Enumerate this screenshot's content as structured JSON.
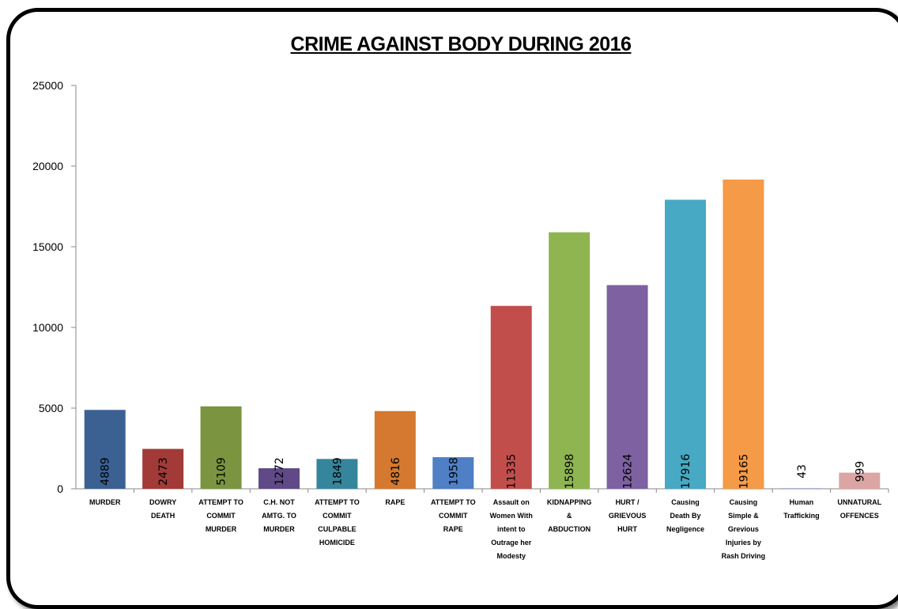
{
  "chart_data": {
    "type": "bar",
    "title": "CRIME AGAINST BODY  DURING  2016",
    "xlabel": "",
    "ylabel": "",
    "ylim": [
      0,
      25000
    ],
    "yticks": [
      "0",
      "5000",
      "10000",
      "15000",
      "20000",
      "25000"
    ],
    "grid": false,
    "legend": "none",
    "categories": [
      [
        "MURDER"
      ],
      [
        "DOWRY",
        "DEATH"
      ],
      [
        "ATTEMPT TO",
        "COMMIT",
        "MURDER"
      ],
      [
        "C.H. NOT",
        "AMTG. TO",
        "MURDER"
      ],
      [
        "ATTEMPT TO",
        "COMMIT",
        "CULPABLE",
        "HOMICIDE"
      ],
      [
        "RAPE"
      ],
      [
        "ATTEMPT TO",
        "COMMIT",
        "RAPE"
      ],
      [
        "Assault on",
        "Women With",
        "intent to",
        "Outrage her",
        "Modesty"
      ],
      [
        "KIDNAPPING",
        "&",
        "ABDUCTION"
      ],
      [
        "HURT /",
        "GRIEVOUS",
        "HURT"
      ],
      [
        "Causing",
        "Death By",
        "Negligence"
      ],
      [
        "Causing",
        "Simple &",
        "Grevious",
        "Injuries by",
        "Rash Driving"
      ],
      [
        "Human",
        "Trafficking"
      ],
      [
        "UNNATURAL",
        "OFFENCES"
      ]
    ],
    "values": [
      4889,
      2473,
      5109,
      1272,
      1849,
      4816,
      1958,
      11335,
      15898,
      12624,
      17916,
      19165,
      43,
      999
    ],
    "colors": [
      "#3b6193",
      "#a23a38",
      "#7a9440",
      "#5f4a87",
      "#35869c",
      "#d4792f",
      "#4f7fc4",
      "#c24e4c",
      "#8eb54f",
      "#7d61a1",
      "#47a9c3",
      "#f59a47",
      "#a9b9da",
      "#dba5a4"
    ]
  }
}
